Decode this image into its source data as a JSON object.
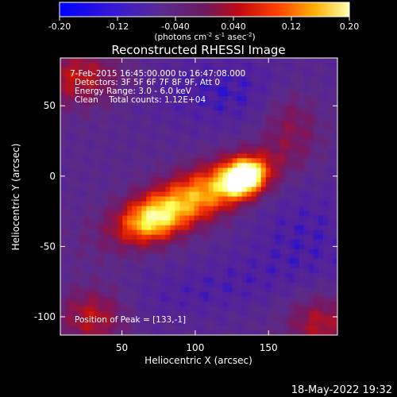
{
  "colorbar": {
    "tick_labels": [
      "-0.20",
      "-0.12",
      "-0.040",
      "0.040",
      "0.12",
      "0.20"
    ],
    "tick_values": [
      -0.2,
      -0.12,
      -0.04,
      0.04,
      0.12,
      0.2
    ],
    "range": [
      -0.2,
      0.2
    ],
    "unit_main": "(photons cm",
    "unit_sup1": "-2",
    "unit_mid1": " s",
    "unit_sup2": "-1",
    "unit_mid2": " asec",
    "unit_sup3": "-2",
    "unit_end": ")"
  },
  "chart_data": {
    "type": "heatmap",
    "title": "Reconstructed RHESSI Image",
    "xlabel": "Heliocentric X (arcsec)",
    "ylabel": "Heliocentric Y (arcsec)",
    "xlim": [
      8,
      197
    ],
    "ylim": [
      -113,
      84
    ],
    "x_ticks": [
      50,
      100,
      150
    ],
    "y_ticks": [
      -100,
      -50,
      0,
      50
    ],
    "x_tick_labels": [
      "50",
      "100",
      "150"
    ],
    "y_tick_labels": [
      "-100",
      "-50",
      "0",
      "50"
    ],
    "peak": [
      133,
      -1
    ],
    "colormap": [
      "#0000ff",
      "#5020a0",
      "#5b2a86",
      "#7a1660",
      "#c01010",
      "#ff4000",
      "#ffa000",
      "#ffff50",
      "#ffffff"
    ]
  },
  "annotations": {
    "line1": " 7-Feb-2015 16:45:00.000 to 16:47:08.000",
    "line2": "Detectors: 3F 5F 6F 7F 8F 9F, Att 0",
    "line3": "Energy Range: 3.0 - 6.0 keV",
    "line4": "Clean    Total counts: 1.12E+04",
    "peak_text": "Position of Peak = [133,-1]"
  },
  "footer": {
    "timestamp": "18-May-2022 19:32"
  }
}
